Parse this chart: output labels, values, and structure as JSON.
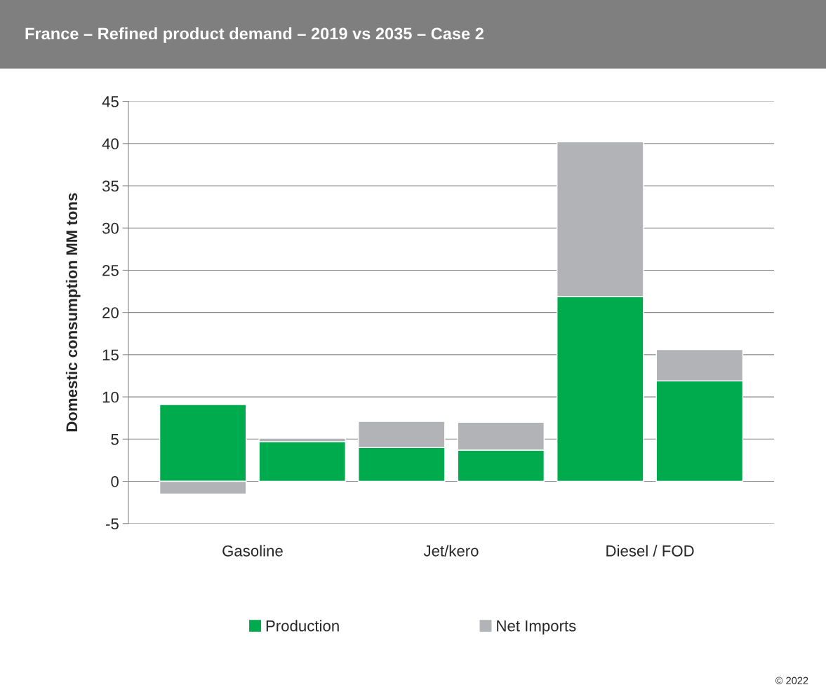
{
  "chart_data": {
    "type": "bar",
    "title": "France – Refined product demand – 2019 vs 2035 – Case 2",
    "ylabel": "Domestic consumption MM tons",
    "categories": [
      "Gasoline",
      null,
      "Jet/kero",
      null,
      "Diesel / FOD",
      null
    ],
    "stacked": true,
    "series": [
      {
        "name": "Production",
        "color": "#00ab4e",
        "values": [
          9.1,
          4.7,
          4.0,
          3.7,
          21.9,
          11.9
        ]
      },
      {
        "name": "Net Imports",
        "color": "#b1b3b6",
        "values": [
          -1.5,
          0.4,
          3.1,
          3.3,
          18.3,
          3.7
        ]
      }
    ],
    "ylim": [
      -5,
      45
    ],
    "yticks": [
      -5,
      0,
      5,
      10,
      15,
      20,
      25,
      30,
      35,
      40,
      45
    ],
    "grid": "y",
    "legend": "bottom",
    "annotations": [
      "© 2022"
    ]
  }
}
